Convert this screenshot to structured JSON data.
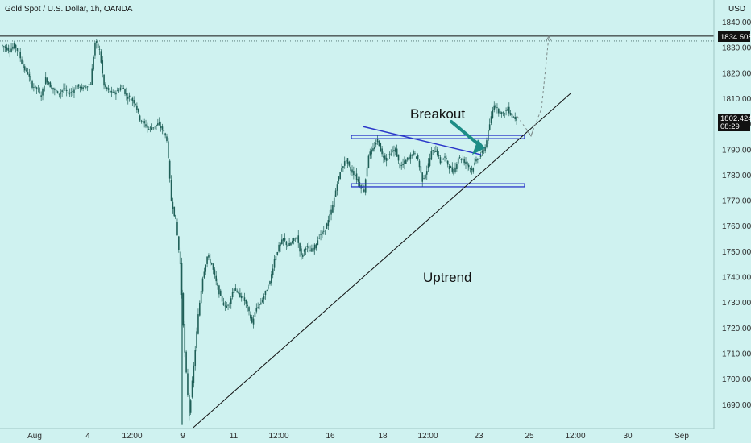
{
  "header": {
    "title": "Gold Spot / U.S. Dollar, 1h, OANDA",
    "currency": "USD"
  },
  "colors": {
    "background": "#cff2f0",
    "candle": "#1f5f57",
    "channel": "#2a36c9",
    "breakout_arrow": "#1d8d86",
    "trendline": "#111111",
    "price_label_bg": "#111111",
    "price_label_fg": "#ffffff"
  },
  "chart_data": {
    "type": "candlestick",
    "y_range": [
      1681,
      1845
    ],
    "y_ticks": [
      "1840.000",
      "1830.000",
      "1820.000",
      "1810.000",
      "1800.000",
      "1790.000",
      "1780.000",
      "1770.000",
      "1760.000",
      "1750.000",
      "1740.000",
      "1730.000",
      "1720.000",
      "1710.000",
      "1700.000",
      "1690.000"
    ],
    "x_ticks": [
      "Aug",
      "4",
      "12:00",
      "9",
      "11",
      "12:00",
      "16",
      "18",
      "12:00",
      "23",
      "25",
      "12:00",
      "30",
      "Sep"
    ],
    "price_labels": {
      "level_high": "1834.508",
      "last_price": "1802.424",
      "countdown": "08:29"
    },
    "annotations": {
      "breakout": "Breakout",
      "trend": "Uptrend"
    },
    "horizontal_levels": [
      1834.508
    ],
    "dotted_levels": [
      1832.6,
      1802.424
    ],
    "channel_top": {
      "x_label_from": "16",
      "x_label_to": "25",
      "low": 1794.3,
      "high": 1795.6
    },
    "channel_bottom": {
      "x_label_from": "16",
      "x_label_to": "25",
      "low": 1775.4,
      "high": 1776.6
    },
    "descending_trendline": [
      [
        1799,
        1788
      ]
    ],
    "ascending_trendline": [
      [
        1681,
        1812
      ]
    ],
    "price_path": [
      1831,
      1830,
      1829,
      1831,
      1828,
      1822,
      1820,
      1815,
      1814,
      1811,
      1818,
      1815,
      1813,
      1812,
      1814,
      1812,
      1813,
      1815,
      1814,
      1815,
      1816,
      1832,
      1829,
      1815,
      1813,
      1812,
      1813,
      1815,
      1811,
      1810,
      1808,
      1802,
      1800,
      1798,
      1799,
      1800,
      1798,
      1794,
      1770,
      1762,
      1745,
      1710,
      1686,
      1705,
      1725,
      1740,
      1748,
      1745,
      1738,
      1732,
      1728,
      1730,
      1736,
      1733,
      1732,
      1728,
      1722,
      1728,
      1730,
      1734,
      1738,
      1747,
      1752,
      1755,
      1752,
      1754,
      1756,
      1748,
      1752,
      1750,
      1752,
      1756,
      1758,
      1762,
      1768,
      1777,
      1783,
      1786,
      1782,
      1780,
      1776,
      1774,
      1788,
      1790,
      1794,
      1788,
      1786,
      1789,
      1790,
      1783,
      1785,
      1787,
      1789,
      1786,
      1778,
      1782,
      1789,
      1790,
      1785,
      1787,
      1783,
      1781,
      1787,
      1786,
      1784,
      1782,
      1786,
      1788,
      1791,
      1800,
      1808,
      1805,
      1804,
      1806,
      1803,
      1802
    ]
  }
}
